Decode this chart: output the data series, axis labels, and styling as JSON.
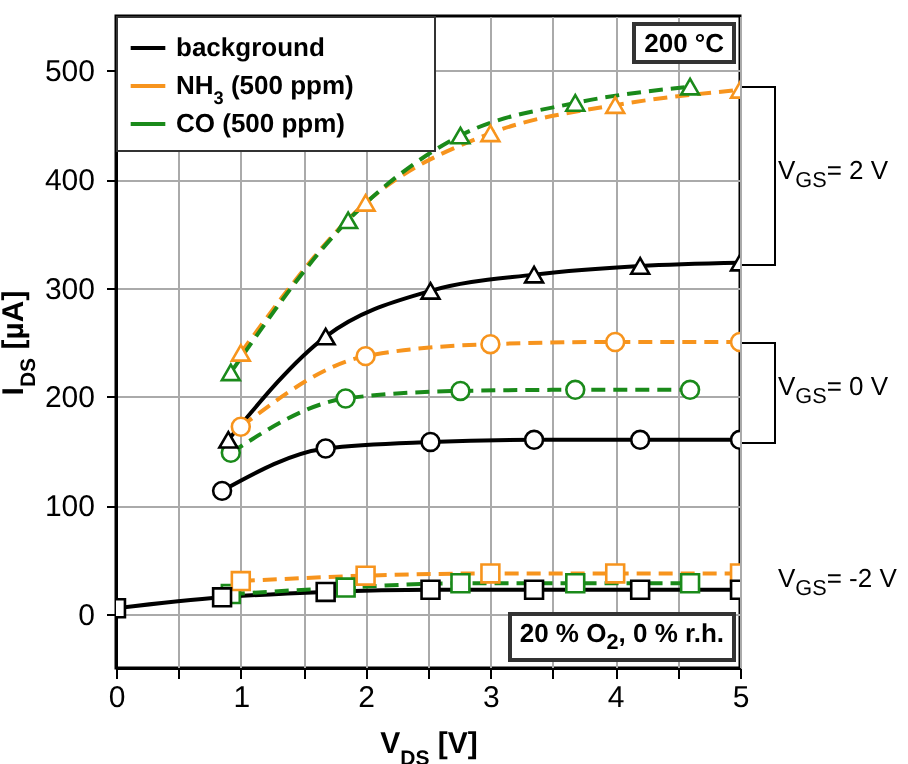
{
  "chart_data": {
    "type": "line",
    "xlabel": "V$_{DS}$ [V]",
    "ylabel": "I$_{DS}$ [µA]",
    "xlim": [
      0,
      5
    ],
    "xticks": [
      0,
      {
        "value": 0.5,
        "label": null
      },
      1,
      {
        "value": 1.5,
        "label": null
      },
      2,
      {
        "value": 2.5,
        "label": null
      },
      3,
      {
        "value": 3.5,
        "label": null
      },
      4,
      {
        "value": 4.5,
        "label": null
      },
      5
    ],
    "ylim": [
      -50,
      550
    ],
    "yticks": [
      0,
      100,
      200,
      300,
      400,
      500
    ],
    "grid": true,
    "legend": "top left",
    "series": [
      {
        "name": "background",
        "color": "#000000",
        "marker": "triangle",
        "line_style": "solid",
        "x": [
          0.9,
          1.68,
          2.52,
          3.35,
          4.2,
          5
        ],
        "values": [
          160,
          255,
          297,
          312,
          320,
          323
        ]
      },
      {
        "name": "NH$_{3}$ (500 ppm)",
        "color": "#f7941d",
        "marker": "triangle",
        "line_style": "dashed",
        "x": [
          1.0,
          2.0,
          3.0,
          4.0,
          5.0
        ],
        "values": [
          240,
          378,
          442,
          468,
          482
        ]
      },
      {
        "name": "CO (500 ppm)",
        "color": "#1a8a1a",
        "marker": "triangle",
        "line_style": "dashed",
        "x": [
          0.92,
          1.86,
          2.76,
          3.68,
          4.6
        ],
        "values": [
          222,
          362,
          440,
          470,
          485
        ]
      },
      {
        "color": "#000000",
        "marker": "circle",
        "line_style": "solid",
        "x": [
          0.85,
          1.68,
          2.52,
          3.35,
          4.2,
          5
        ],
        "values": [
          113,
          152,
          158,
          160,
          160,
          160
        ]
      },
      {
        "color": "#f7941d",
        "marker": "circle",
        "line_style": "dashed",
        "x": [
          1.0,
          2.0,
          3.0,
          4.0,
          5.0
        ],
        "values": [
          172,
          237,
          248,
          250,
          250
        ]
      },
      {
        "color": "#1a8a1a",
        "marker": "circle",
        "line_style": "dashed",
        "x": [
          0.92,
          1.84,
          2.76,
          3.68,
          4.6
        ],
        "values": [
          148,
          198,
          205,
          206,
          206
        ]
      },
      {
        "color": "#000000",
        "marker": "square",
        "line_style": "solid",
        "x": [
          0,
          0.85,
          1.68,
          2.52,
          3.35,
          4.2,
          5
        ],
        "values": [
          5,
          15,
          20,
          22,
          22,
          22,
          22
        ]
      },
      {
        "color": "#f7941d",
        "marker": "square",
        "line_style": "dashed",
        "x": [
          1.0,
          2.0,
          3.0,
          4.0,
          5.0
        ],
        "values": [
          30,
          35,
          37,
          37,
          37
        ]
      },
      {
        "color": "#1a8a1a",
        "marker": "square",
        "line_style": "dashed",
        "x": [
          0.92,
          1.84,
          2.76,
          3.68,
          4.6
        ],
        "values": [
          18,
          24,
          28,
          28,
          28
        ]
      }
    ],
    "annotations": [
      "200 °C",
      "20 % O$_{2}$, 0 % r.h.",
      "V$_{GS}$= 2 V",
      "V$_{GS}$= 0 V",
      "V$_{GS}$= -2 V"
    ]
  }
}
